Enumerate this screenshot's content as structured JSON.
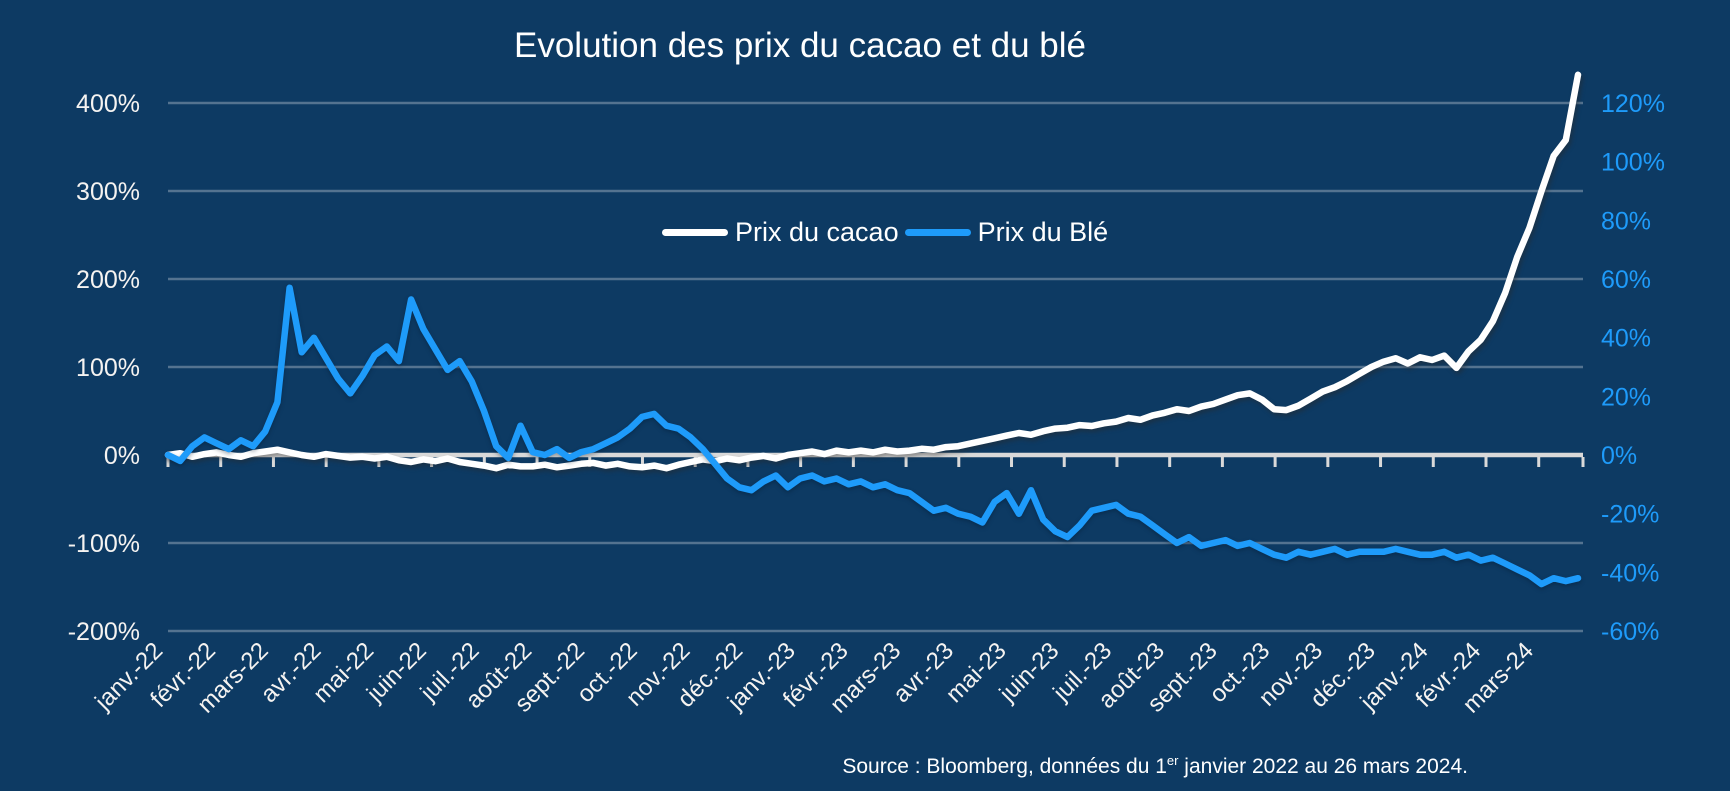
{
  "title": "Evolution des prix du cacao et du blé",
  "legend": {
    "cacao": "Prix du cacao",
    "ble": "Prix du Blé"
  },
  "source": {
    "prefix": "Source : Bloomberg, données du 1",
    "sup": "er",
    "suffix": " janvier 2022 au 26 mars 2024."
  },
  "colors": {
    "background": "#0d3a63",
    "cacao_line": "#ffffff",
    "ble_line": "#1e9bfa",
    "gridline": "#547390",
    "zero_axis": "#d9d9d9",
    "left_labels": "#f5f3f1",
    "right_labels": "#1e9bfa",
    "title_text": "#ffffff"
  },
  "chart_data": {
    "type": "line",
    "title": "Evolution des prix du cacao et du blé",
    "x_labels": [
      "janv.-22",
      "févr.-22",
      "mars-22",
      "avr.-22",
      "mai-22",
      "juin-22",
      "juil.-22",
      "août-22",
      "sept.-22",
      "oct.-22",
      "nov.-22",
      "déc.-22",
      "janv.-23",
      "févr.-23",
      "mars-23",
      "avr.-23",
      "mai-23",
      "juin-23",
      "juil.-23",
      "août-23",
      "sept.-23",
      "oct.-23",
      "nov.-23",
      "déc.-23",
      "janv.-24",
      "févr.-24",
      "mars-24"
    ],
    "x_range_note": "points évenly spaced 1 janvier 2022 to 26 mars 2024, weekly",
    "left_axis": {
      "unit": "%",
      "min": -200,
      "max": 400,
      "ticks": [
        "400%",
        "300%",
        "200%",
        "100%",
        "0%",
        "-100%",
        "-200%"
      ],
      "tick_values": [
        400,
        300,
        200,
        100,
        0,
        -100,
        -200
      ]
    },
    "right_axis": {
      "unit": "%",
      "min": -60,
      "max": 120,
      "ticks": [
        "120%",
        "100%",
        "80%",
        "60%",
        "40%",
        "20%",
        "0%",
        "-20%",
        "-40%",
        "-60%"
      ],
      "tick_values": [
        120,
        100,
        80,
        60,
        40,
        20,
        0,
        -20,
        -40,
        -60
      ]
    },
    "grid": true,
    "legend_position": "center-upper",
    "series": [
      {
        "name": "Prix du cacao",
        "axis": "left",
        "color": "#ffffff",
        "values": [
          0,
          2,
          -2,
          1,
          3,
          0,
          -2,
          2,
          4,
          6,
          3,
          0,
          -2,
          1,
          -1,
          -3,
          -2,
          -4,
          -2,
          -6,
          -8,
          -5,
          -7,
          -4,
          -8,
          -10,
          -12,
          -15,
          -11,
          -13,
          -13,
          -11,
          -14,
          -12,
          -10,
          -9,
          -12,
          -10,
          -13,
          -14,
          -12,
          -15,
          -11,
          -8,
          -5,
          -7,
          -4,
          -6,
          -3,
          -1,
          -4,
          0,
          2,
          4,
          1,
          5,
          3,
          5,
          3,
          6,
          4,
          5,
          7,
          6,
          9,
          10,
          13,
          16,
          19,
          22,
          25,
          23,
          27,
          30,
          31,
          34,
          33,
          36,
          38,
          42,
          40,
          45,
          48,
          52,
          50,
          55,
          58,
          63,
          68,
          70,
          63,
          52,
          51,
          56,
          64,
          72,
          77,
          84,
          92,
          100,
          106,
          110,
          104,
          111,
          108,
          113,
          99,
          118,
          131,
          152,
          184,
          225,
          258,
          300,
          340,
          358,
          432
        ]
      },
      {
        "name": "Prix du Blé",
        "axis": "right",
        "color": "#1e9bfa",
        "values": [
          0,
          -2,
          3,
          6,
          4,
          2,
          5,
          3,
          8,
          18,
          57,
          35,
          40,
          33,
          26,
          21,
          27,
          34,
          37,
          32,
          53,
          43,
          36,
          29,
          32,
          25,
          15,
          3,
          -1,
          10,
          1,
          0,
          2,
          -1,
          1,
          2,
          4,
          6,
          9,
          13,
          14,
          10,
          9,
          6,
          2,
          -3,
          -8,
          -11,
          -12,
          -9,
          -7,
          -11,
          -8,
          -7,
          -9,
          -8,
          -10,
          -9,
          -11,
          -10,
          -12,
          -13,
          -16,
          -19,
          -18,
          -20,
          -21,
          -23,
          -16,
          -13,
          -20,
          -12,
          -22,
          -26,
          -28,
          -24,
          -19,
          -18,
          -17,
          -20,
          -21,
          -24,
          -27,
          -30,
          -28,
          -31,
          -30,
          -29,
          -31,
          -30,
          -32,
          -34,
          -35,
          -33,
          -34,
          -33,
          -32,
          -34,
          -33,
          -33,
          -33,
          -32,
          -33,
          -34,
          -34,
          -33,
          -35,
          -34,
          -36,
          -35,
          -37,
          -39,
          -41,
          -44,
          -42,
          -43,
          -42
        ]
      }
    ]
  }
}
